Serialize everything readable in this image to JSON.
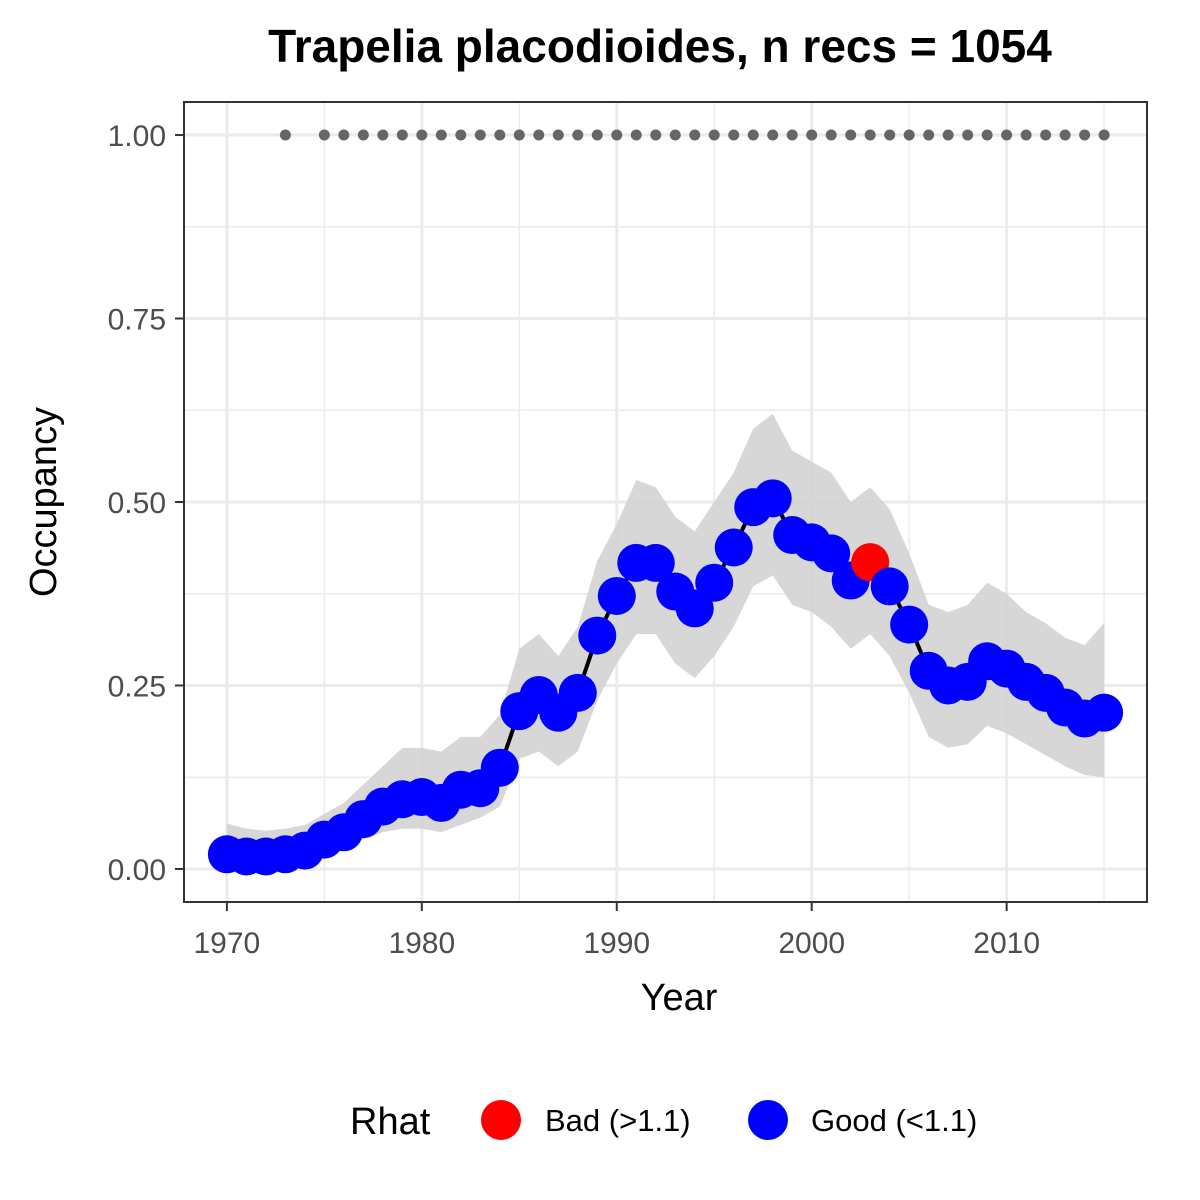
{
  "chart_data": {
    "type": "line",
    "title": "Trapelia placodioides, n recs = 1054",
    "xlabel": "Year",
    "ylabel": "Occupancy",
    "xlim": [
      1967.8,
      1917.2
    ],
    "xlim_note": "",
    "ylim": [
      -0.045,
      1.045
    ],
    "x_ticks": [
      1970,
      1980,
      1990,
      2000,
      2010
    ],
    "x_tick_labels": [
      "1970",
      "1980",
      "1990",
      "2000",
      "2010"
    ],
    "y_ticks": [
      0,
      0.25,
      0.5,
      0.75,
      1
    ],
    "y_tick_labels": [
      "0.00",
      "0.25",
      "0.50",
      "0.75",
      "1.00"
    ],
    "grid": true,
    "legend": {
      "title": "Rhat",
      "position": "bottom",
      "entries": [
        {
          "label": "Bad (>1.1)",
          "color": "#ff0000"
        },
        {
          "label": "Good (<1.1)",
          "color": "#0000ff"
        }
      ]
    },
    "colors": {
      "bad": "#ff0000",
      "good": "#0000ff",
      "line": "#000000",
      "ribbon": "#d3d3d3",
      "record_dots": "#666666"
    },
    "series": [
      {
        "values": [
          {
            "year": 1970,
            "occ": 0.02,
            "lo": 0.005,
            "hi": 0.062,
            "rhat": "good"
          },
          {
            "year": 1971,
            "occ": 0.017,
            "lo": 0.004,
            "hi": 0.055,
            "rhat": "good"
          },
          {
            "year": 1972,
            "occ": 0.017,
            "lo": 0.004,
            "hi": 0.052,
            "rhat": "good"
          },
          {
            "year": 1973,
            "occ": 0.02,
            "lo": 0.006,
            "hi": 0.055,
            "rhat": "good"
          },
          {
            "year": 1974,
            "occ": 0.025,
            "lo": 0.008,
            "hi": 0.06,
            "rhat": "good"
          },
          {
            "year": 1975,
            "occ": 0.04,
            "lo": 0.018,
            "hi": 0.075,
            "rhat": "good"
          },
          {
            "year": 1976,
            "occ": 0.05,
            "lo": 0.028,
            "hi": 0.09,
            "rhat": "good"
          },
          {
            "year": 1977,
            "occ": 0.068,
            "lo": 0.04,
            "hi": 0.115,
            "rhat": "good"
          },
          {
            "year": 1978,
            "occ": 0.085,
            "lo": 0.05,
            "hi": 0.14,
            "rhat": "good"
          },
          {
            "year": 1979,
            "occ": 0.095,
            "lo": 0.055,
            "hi": 0.165,
            "rhat": "good"
          },
          {
            "year": 1980,
            "occ": 0.098,
            "lo": 0.055,
            "hi": 0.165,
            "rhat": "good"
          },
          {
            "year": 1981,
            "occ": 0.09,
            "lo": 0.05,
            "hi": 0.16,
            "rhat": "good"
          },
          {
            "year": 1982,
            "occ": 0.108,
            "lo": 0.06,
            "hi": 0.18,
            "rhat": "good"
          },
          {
            "year": 1983,
            "occ": 0.11,
            "lo": 0.07,
            "hi": 0.18,
            "rhat": "good"
          },
          {
            "year": 1984,
            "occ": 0.138,
            "lo": 0.085,
            "hi": 0.21,
            "rhat": "good"
          },
          {
            "year": 1985,
            "occ": 0.215,
            "lo": 0.15,
            "hi": 0.3,
            "rhat": "good"
          },
          {
            "year": 1986,
            "occ": 0.237,
            "lo": 0.16,
            "hi": 0.32,
            "rhat": "good"
          },
          {
            "year": 1987,
            "occ": 0.213,
            "lo": 0.14,
            "hi": 0.29,
            "rhat": "good"
          },
          {
            "year": 1988,
            "occ": 0.24,
            "lo": 0.16,
            "hi": 0.33,
            "rhat": "good"
          },
          {
            "year": 1989,
            "occ": 0.318,
            "lo": 0.23,
            "hi": 0.42,
            "rhat": "good"
          },
          {
            "year": 1990,
            "occ": 0.372,
            "lo": 0.28,
            "hi": 0.47,
            "rhat": "good"
          },
          {
            "year": 1991,
            "occ": 0.417,
            "lo": 0.32,
            "hi": 0.53,
            "rhat": "good"
          },
          {
            "year": 1992,
            "occ": 0.417,
            "lo": 0.32,
            "hi": 0.52,
            "rhat": "good"
          },
          {
            "year": 1993,
            "occ": 0.378,
            "lo": 0.28,
            "hi": 0.48,
            "rhat": "good"
          },
          {
            "year": 1994,
            "occ": 0.355,
            "lo": 0.26,
            "hi": 0.46,
            "rhat": "good"
          },
          {
            "year": 1995,
            "occ": 0.39,
            "lo": 0.29,
            "hi": 0.5,
            "rhat": "good"
          },
          {
            "year": 1996,
            "occ": 0.438,
            "lo": 0.33,
            "hi": 0.54,
            "rhat": "good"
          },
          {
            "year": 1997,
            "occ": 0.493,
            "lo": 0.385,
            "hi": 0.6,
            "rhat": "good"
          },
          {
            "year": 1998,
            "occ": 0.505,
            "lo": 0.4,
            "hi": 0.62,
            "rhat": "good"
          },
          {
            "year": 1999,
            "occ": 0.455,
            "lo": 0.36,
            "hi": 0.57,
            "rhat": "good"
          },
          {
            "year": 2000,
            "occ": 0.445,
            "lo": 0.35,
            "hi": 0.555,
            "rhat": "good"
          },
          {
            "year": 2001,
            "occ": 0.43,
            "lo": 0.33,
            "hi": 0.54,
            "rhat": "good"
          },
          {
            "year": 2002,
            "occ": 0.393,
            "lo": 0.3,
            "hi": 0.5,
            "rhat": "good"
          },
          {
            "year": 2003,
            "occ": 0.418,
            "lo": 0.32,
            "hi": 0.52,
            "rhat": "bad"
          },
          {
            "year": 2004,
            "occ": 0.385,
            "lo": 0.29,
            "hi": 0.49,
            "rhat": "good"
          },
          {
            "year": 2005,
            "occ": 0.333,
            "lo": 0.24,
            "hi": 0.43,
            "rhat": "good"
          },
          {
            "year": 2006,
            "occ": 0.27,
            "lo": 0.18,
            "hi": 0.36,
            "rhat": "good"
          },
          {
            "year": 2007,
            "occ": 0.25,
            "lo": 0.165,
            "hi": 0.35,
            "rhat": "good"
          },
          {
            "year": 2008,
            "occ": 0.255,
            "lo": 0.17,
            "hi": 0.36,
            "rhat": "good"
          },
          {
            "year": 2009,
            "occ": 0.283,
            "lo": 0.195,
            "hi": 0.39,
            "rhat": "good"
          },
          {
            "year": 2010,
            "occ": 0.273,
            "lo": 0.185,
            "hi": 0.375,
            "rhat": "good"
          },
          {
            "year": 2011,
            "occ": 0.255,
            "lo": 0.17,
            "hi": 0.35,
            "rhat": "good"
          },
          {
            "year": 2012,
            "occ": 0.24,
            "lo": 0.155,
            "hi": 0.335,
            "rhat": "good"
          },
          {
            "year": 2013,
            "occ": 0.22,
            "lo": 0.14,
            "hi": 0.315,
            "rhat": "good"
          },
          {
            "year": 2014,
            "occ": 0.205,
            "lo": 0.128,
            "hi": 0.305,
            "rhat": "good"
          },
          {
            "year": 2015,
            "occ": 0.213,
            "lo": 0.125,
            "hi": 0.335,
            "rhat": "good"
          }
        ]
      }
    ],
    "record_years": [
      1973,
      1975,
      1976,
      1977,
      1978,
      1979,
      1980,
      1981,
      1982,
      1983,
      1984,
      1985,
      1986,
      1987,
      1988,
      1989,
      1990,
      1991,
      1992,
      1993,
      1994,
      1995,
      1996,
      1997,
      1998,
      1999,
      2000,
      2001,
      2002,
      2003,
      2004,
      2005,
      2006,
      2007,
      2008,
      2009,
      2010,
      2011,
      2012,
      2013,
      2014,
      2015
    ],
    "record_dot_value": 1.0
  }
}
